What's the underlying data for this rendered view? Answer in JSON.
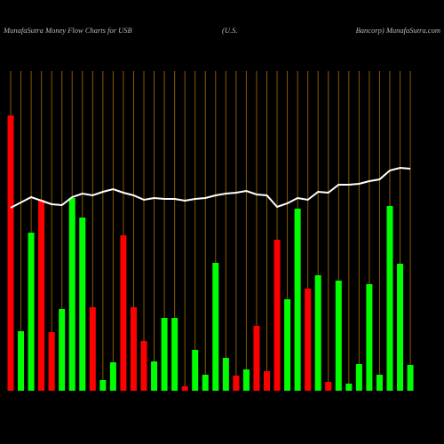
{
  "chart_data": {
    "type": "bar",
    "title_parts": [
      "MunafaSutra  Money Flow  Charts for USB",
      "(U.S.",
      "Bancorp) MunafaSutra.com"
    ],
    "categories": [
      null,
      null,
      null,
      null,
      null,
      null,
      null,
      null,
      null,
      null,
      null,
      null,
      null,
      null,
      null,
      null,
      null,
      null,
      null,
      null,
      null,
      null,
      null,
      null,
      null,
      null,
      null,
      null,
      null,
      null,
      null,
      null,
      null,
      null,
      null,
      null,
      null,
      null,
      null,
      null
    ],
    "values": [
      310,
      67,
      178,
      215,
      66,
      92,
      217,
      195,
      94,
      12,
      32,
      175,
      94,
      56,
      33,
      82,
      82,
      5,
      46,
      18,
      144,
      37,
      17,
      24,
      73,
      22,
      170,
      103,
      205,
      115,
      130,
      10,
      124,
      8,
      30,
      120,
      18,
      208,
      143,
      29
    ],
    "colors": [
      "#ff0000",
      "#00ff00",
      "#00ff00",
      "#ff0000",
      "#ff0000",
      "#00ff00",
      "#00ff00",
      "#00ff00",
      "#ff0000",
      "#00ff00",
      "#00ff00",
      "#ff0000",
      "#ff0000",
      "#ff0000",
      "#00ff00",
      "#00ff00",
      "#00ff00",
      "#ff0000",
      "#00ff00",
      "#00ff00",
      "#00ff00",
      "#00ff00",
      "#ff0000",
      "#00ff00",
      "#ff0000",
      "#ff0000",
      "#ff0000",
      "#00ff00",
      "#00ff00",
      "#ff0000",
      "#00ff00",
      "#ff0000",
      "#00ff00",
      "#00ff00",
      "#00ff00",
      "#00ff00",
      "#00ff00",
      "#00ff00",
      "#00ff00",
      "#00ff00"
    ],
    "line": {
      "color": "#ffffff",
      "values": [
        206,
        212,
        218,
        214,
        210,
        209,
        218,
        222,
        220,
        224,
        227,
        223,
        220,
        215,
        217,
        216,
        216,
        214,
        216,
        217,
        220,
        222,
        223,
        225,
        221,
        220,
        207,
        211,
        217,
        215,
        224,
        223,
        232,
        232,
        233,
        236,
        238,
        248,
        251,
        250
      ]
    },
    "ylim": [
      0,
      360
    ],
    "gridline_color": "#8a5a00"
  }
}
